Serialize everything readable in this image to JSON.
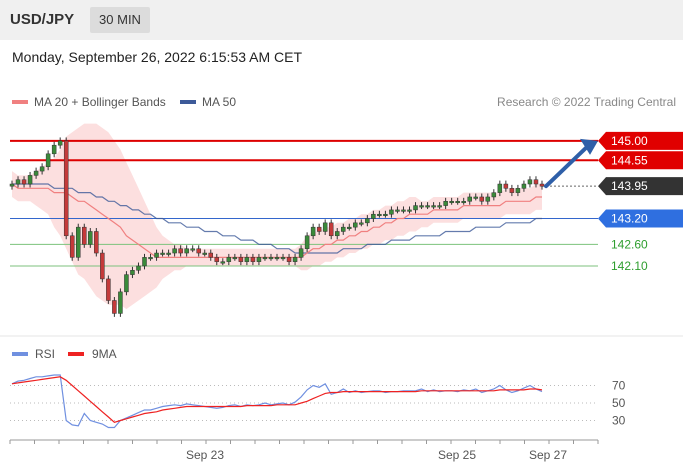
{
  "header": {
    "symbol": "USD/JPY",
    "timeframe": "30 MIN"
  },
  "date_line": "Monday, September 26, 2022 6:15:53 AM CET",
  "legend": {
    "items": [
      {
        "label": "MA 20 + Bollinger Bands",
        "color": "#f08080"
      },
      {
        "label": "MA 50",
        "color": "#3d5a99"
      }
    ],
    "credit": "Research © 2022 Trading Central"
  },
  "chart_data": [
    {
      "type": "line",
      "subtype": "candlestick-with-levels",
      "x_labels": [
        "Sep 23",
        "Sep 25",
        "Sep 27"
      ],
      "ylim": [
        140.5,
        145.6
      ],
      "levels": [
        {
          "value": 145.0,
          "label": "145.00",
          "color": "#dd0000",
          "style": "resistance"
        },
        {
          "value": 144.55,
          "label": "144.55",
          "color": "#dd0000",
          "style": "resistance"
        },
        {
          "value": 143.95,
          "label": "143.95",
          "color": "#333333",
          "style": "last"
        },
        {
          "value": 143.2,
          "label": "143.20",
          "color": "#3366cc",
          "style": "pivot"
        },
        {
          "value": 142.6,
          "label": "142.60",
          "color": "#2e9e2e",
          "style": "support"
        },
        {
          "value": 142.1,
          "label": "142.10",
          "color": "#2e9e2e",
          "style": "support"
        }
      ],
      "closes": [
        144.0,
        144.1,
        144.0,
        144.2,
        144.3,
        144.4,
        144.7,
        144.9,
        145.0,
        142.8,
        142.3,
        143.0,
        142.6,
        142.9,
        142.4,
        141.8,
        141.3,
        141.0,
        141.5,
        141.9,
        142.0,
        142.1,
        142.3,
        142.3,
        142.4,
        142.4,
        142.4,
        142.5,
        142.4,
        142.5,
        142.5,
        142.4,
        142.4,
        142.3,
        142.2,
        142.2,
        142.3,
        142.3,
        142.2,
        142.3,
        142.2,
        142.3,
        142.3,
        142.3,
        142.3,
        142.3,
        142.2,
        142.3,
        142.5,
        142.8,
        143.0,
        142.9,
        143.1,
        142.8,
        142.9,
        143.0,
        143.0,
        143.1,
        143.1,
        143.2,
        143.3,
        143.3,
        143.3,
        143.4,
        143.4,
        143.4,
        143.4,
        143.5,
        143.5,
        143.5,
        143.5,
        143.5,
        143.6,
        143.6,
        143.6,
        143.6,
        143.7,
        143.7,
        143.6,
        143.7,
        143.8,
        144.0,
        143.9,
        143.8,
        143.9,
        144.0,
        144.1,
        144.0,
        143.95
      ],
      "ma20": [
        144.0,
        143.9,
        143.9,
        143.9,
        143.9,
        143.9,
        143.9,
        143.8,
        143.8,
        143.8,
        143.7,
        143.6,
        143.6,
        143.5,
        143.4,
        143.3,
        143.2,
        143.1,
        143.0,
        142.8,
        142.7,
        142.6,
        142.5,
        142.4,
        142.3,
        142.3,
        142.3,
        142.3,
        142.3,
        142.3,
        142.3,
        142.3,
        142.3,
        142.3,
        142.3,
        142.3,
        142.3,
        142.3,
        142.3,
        142.3,
        142.3,
        142.3,
        142.3,
        142.3,
        142.3,
        142.3,
        142.3,
        142.3,
        142.3,
        142.4,
        142.5,
        142.5,
        142.6,
        142.6,
        142.7,
        142.7,
        142.8,
        142.8,
        142.9,
        142.9,
        143.0,
        143.0,
        143.1,
        143.1,
        143.2,
        143.2,
        143.3,
        143.3,
        143.3,
        143.3,
        143.4,
        143.4,
        143.4,
        143.4,
        143.4,
        143.5,
        143.5,
        143.5,
        143.5,
        143.5,
        143.5,
        143.5,
        143.6,
        143.6,
        143.6,
        143.6,
        143.6,
        143.7,
        143.7
      ],
      "ma50": [
        144.0,
        144.0,
        144.0,
        144.0,
        144.0,
        144.0,
        144.0,
        143.9,
        143.9,
        143.9,
        143.9,
        143.8,
        143.8,
        143.8,
        143.7,
        143.7,
        143.6,
        143.6,
        143.5,
        143.5,
        143.4,
        143.4,
        143.3,
        143.3,
        143.2,
        143.2,
        143.1,
        143.1,
        143.1,
        143.0,
        143.0,
        143.0,
        142.9,
        142.9,
        142.9,
        142.8,
        142.8,
        142.8,
        142.7,
        142.7,
        142.7,
        142.6,
        142.6,
        142.6,
        142.5,
        142.5,
        142.5,
        142.4,
        142.4,
        142.4,
        142.4,
        142.4,
        142.4,
        142.4,
        142.4,
        142.5,
        142.5,
        142.5,
        142.5,
        142.6,
        142.6,
        142.6,
        142.6,
        142.7,
        142.7,
        142.7,
        142.7,
        142.8,
        142.8,
        142.8,
        142.8,
        142.8,
        142.9,
        142.9,
        142.9,
        142.9,
        142.9,
        143.0,
        143.0,
        143.0,
        143.0,
        143.0,
        143.1,
        143.1,
        143.1,
        143.1,
        143.1,
        143.2,
        143.2
      ],
      "bollinger_half_width": [
        0.3,
        0.3,
        0.3,
        0.3,
        0.4,
        0.5,
        0.6,
        0.8,
        1.0,
        1.3,
        1.5,
        1.7,
        1.8,
        1.9,
        2.0,
        2.0,
        2.0,
        1.9,
        1.8,
        1.7,
        1.5,
        1.3,
        1.1,
        0.9,
        0.7,
        0.5,
        0.4,
        0.3,
        0.3,
        0.2,
        0.2,
        0.2,
        0.2,
        0.2,
        0.2,
        0.2,
        0.2,
        0.2,
        0.2,
        0.2,
        0.2,
        0.2,
        0.2,
        0.2,
        0.2,
        0.2,
        0.2,
        0.2,
        0.3,
        0.4,
        0.4,
        0.4,
        0.4,
        0.4,
        0.4,
        0.4,
        0.4,
        0.4,
        0.4,
        0.4,
        0.4,
        0.4,
        0.4,
        0.4,
        0.4,
        0.4,
        0.4,
        0.4,
        0.3,
        0.3,
        0.3,
        0.3,
        0.3,
        0.3,
        0.3,
        0.3,
        0.3,
        0.3,
        0.3,
        0.3,
        0.3,
        0.3,
        0.3,
        0.3,
        0.3,
        0.3,
        0.3,
        0.3,
        0.3
      ],
      "forecast_arrow": {
        "from": 143.95,
        "to": 145.0
      }
    },
    {
      "type": "line",
      "legend": [
        {
          "label": "RSI",
          "color": "#7090e0"
        },
        {
          "label": "9MA",
          "color": "#ee2222"
        }
      ],
      "ylim": [
        10,
        90
      ],
      "yticks": [
        "70",
        "50",
        "30"
      ],
      "rsi": [
        72,
        75,
        76,
        78,
        80,
        80,
        81,
        82,
        82,
        30,
        25,
        24,
        38,
        30,
        28,
        26,
        22,
        22,
        30,
        33,
        36,
        39,
        42,
        42,
        44,
        46,
        47,
        48,
        47,
        49,
        48,
        47,
        46,
        45,
        44,
        45,
        47,
        48,
        46,
        48,
        47,
        48,
        50,
        48,
        49,
        50,
        48,
        51,
        57,
        65,
        70,
        68,
        72,
        60,
        62,
        66,
        62,
        64,
        62,
        63,
        64,
        64,
        62,
        63,
        63,
        64,
        64,
        64,
        66,
        63,
        65,
        63,
        64,
        64,
        63,
        65,
        64,
        66,
        62,
        64,
        66,
        70,
        65,
        62,
        64,
        67,
        70,
        66,
        63
      ],
      "ma9": [
        72,
        73,
        74,
        75,
        76,
        77,
        78,
        79,
        80,
        76,
        70,
        64,
        58,
        52,
        46,
        40,
        34,
        28,
        30,
        32,
        34,
        36,
        38,
        39,
        40,
        42,
        43,
        44,
        45,
        46,
        46,
        46,
        46,
        46,
        46,
        46,
        46,
        46,
        46,
        47,
        47,
        47,
        47,
        47,
        48,
        48,
        48,
        48,
        50,
        52,
        55,
        58,
        61,
        62,
        62,
        63,
        63,
        63,
        63,
        63,
        63,
        63,
        63,
        63,
        63,
        63,
        63,
        63,
        64,
        64,
        64,
        64,
        64,
        64,
        64,
        64,
        64,
        64,
        64,
        64,
        64,
        65,
        65,
        65,
        65,
        65,
        66,
        66,
        65
      ]
    }
  ]
}
